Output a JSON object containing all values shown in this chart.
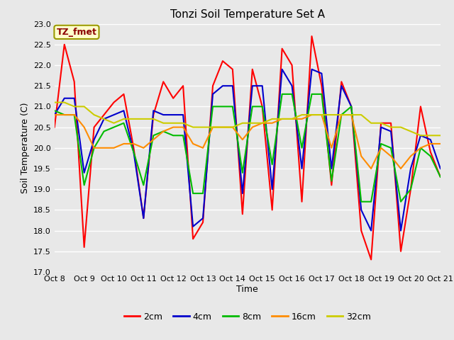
{
  "title": "Tonzi Soil Temperature Set A",
  "xlabel": "Time",
  "ylabel": "Soil Temperature (C)",
  "ylim": [
    17.0,
    23.0
  ],
  "yticks": [
    17.0,
    17.5,
    18.0,
    18.5,
    19.0,
    19.5,
    20.0,
    20.5,
    21.0,
    21.5,
    22.0,
    22.5,
    23.0
  ],
  "xtick_labels": [
    "Oct 8",
    "Oct 9",
    "Oct 10",
    "Oct 11",
    "Oct 12",
    "Oct 13",
    "Oct 14",
    "Oct 15",
    "Oct 16",
    "Oct 17",
    "Oct 18",
    "Oct 19",
    "Oct 20",
    "Oct 21"
  ],
  "annotation_text": "TZ_fmet",
  "annotation_color": "#8B0000",
  "annotation_bg": "#FFFFCC",
  "annotation_border": "#999900",
  "legend_labels": [
    "2cm",
    "4cm",
    "8cm",
    "16cm",
    "32cm"
  ],
  "line_colors": [
    "#FF0000",
    "#0000CC",
    "#00BB00",
    "#FF8C00",
    "#CCCC00"
  ],
  "line_width": 1.5,
  "bg_color": "#E8E8E8",
  "grid_color": "#FFFFFF",
  "y_2cm": [
    20.5,
    22.5,
    21.6,
    17.6,
    20.5,
    20.8,
    21.1,
    21.3,
    20.0,
    18.3,
    20.8,
    21.6,
    21.2,
    21.5,
    17.8,
    18.2,
    21.5,
    22.1,
    21.9,
    18.4,
    21.9,
    21.0,
    18.5,
    22.4,
    22.0,
    18.7,
    22.7,
    21.5,
    19.1,
    21.6,
    21.0,
    18.0,
    17.3,
    20.6,
    20.6,
    17.5,
    19.0,
    21.0,
    19.9,
    19.3
  ],
  "y_4cm": [
    20.8,
    21.2,
    21.2,
    19.4,
    20.2,
    20.7,
    20.8,
    20.9,
    19.9,
    18.3,
    20.9,
    20.8,
    20.8,
    20.8,
    18.1,
    18.3,
    21.3,
    21.5,
    21.5,
    18.9,
    21.5,
    21.5,
    19.0,
    21.9,
    21.5,
    19.5,
    21.9,
    21.8,
    19.5,
    21.5,
    21.0,
    18.5,
    18.0,
    20.5,
    20.4,
    18.0,
    19.5,
    20.3,
    20.2,
    19.5
  ],
  "y_8cm": [
    20.9,
    20.8,
    20.8,
    19.1,
    20.0,
    20.4,
    20.5,
    20.6,
    19.9,
    19.1,
    20.3,
    20.4,
    20.3,
    20.3,
    18.9,
    18.9,
    21.0,
    21.0,
    21.0,
    19.4,
    21.0,
    21.0,
    19.6,
    21.3,
    21.3,
    20.0,
    21.3,
    21.3,
    19.2,
    20.8,
    21.0,
    18.7,
    18.7,
    20.1,
    20.0,
    18.7,
    19.0,
    20.0,
    19.8,
    19.3
  ],
  "y_16cm": [
    20.8,
    20.8,
    20.8,
    20.5,
    20.0,
    20.0,
    20.0,
    20.1,
    20.1,
    20.0,
    20.2,
    20.4,
    20.5,
    20.5,
    20.1,
    20.0,
    20.5,
    20.5,
    20.5,
    20.2,
    20.5,
    20.6,
    20.6,
    20.7,
    20.7,
    20.7,
    20.8,
    20.8,
    20.0,
    20.8,
    20.8,
    19.8,
    19.5,
    20.0,
    19.8,
    19.5,
    19.8,
    20.0,
    20.1,
    20.1
  ],
  "y_32cm": [
    21.1,
    21.1,
    21.0,
    21.0,
    20.8,
    20.7,
    20.6,
    20.7,
    20.7,
    20.7,
    20.7,
    20.6,
    20.6,
    20.6,
    20.5,
    20.5,
    20.5,
    20.5,
    20.5,
    20.6,
    20.6,
    20.6,
    20.7,
    20.7,
    20.7,
    20.8,
    20.8,
    20.8,
    20.8,
    20.8,
    20.8,
    20.8,
    20.6,
    20.6,
    20.5,
    20.5,
    20.4,
    20.3,
    20.3,
    20.3
  ]
}
